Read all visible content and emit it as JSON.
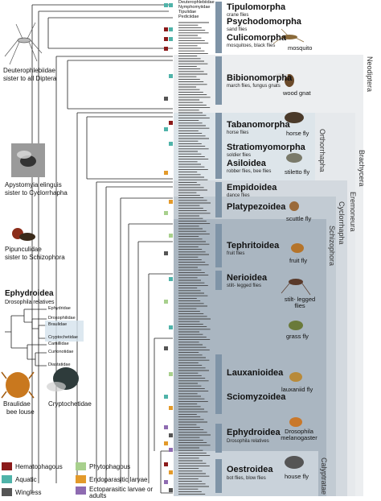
{
  "colors": {
    "hematophagous": "#8b1a1a",
    "aquatic": "#4fb3a9",
    "wingless": "#555555",
    "phytophagous": "#a8d08d",
    "endoparasitic": "#e39a2b",
    "ectoparasitic": "#8e6bb1",
    "band_light": "#e8eaed",
    "band_mid": "#b9c3cc",
    "band_dark": "#94a3b0",
    "clade_bar": "#7f94a7"
  },
  "groups": [
    {
      "name": "Tipulomorpha",
      "sub": "crane flies"
    },
    {
      "name": "Psychodomorpha",
      "sub": "sand flies"
    },
    {
      "name": "Culicomorpha",
      "sub": "mosquitoes, black flies"
    },
    {
      "name": "Bibionomorpha",
      "sub": "march flies, fungus gnats"
    },
    {
      "name": "Tabanomorpha",
      "sub": "horse flies"
    },
    {
      "name": "Stratiomyomorpha",
      "sub": "soldier flies"
    },
    {
      "name": "Asiloidea",
      "sub": "robber flies, bee flies"
    },
    {
      "name": "Empidoidea",
      "sub": "dance flies"
    },
    {
      "name": "Platypezoidea",
      "sub": ""
    },
    {
      "name": "Tephritoidea",
      "sub": "fruit flies"
    },
    {
      "name": "Nerioidea",
      "sub": "stilt- legged flies"
    },
    {
      "name": "Lauxanioidea",
      "sub": ""
    },
    {
      "name": "Sciomyzoidea",
      "sub": ""
    },
    {
      "name": "Ephydroidea",
      "sub": "Drosophila relatives"
    },
    {
      "name": "Oestroidea",
      "sub": "bot flies, blow flies"
    }
  ],
  "photo_captions": {
    "mosquito": "mosquito",
    "wood_gnat": "wood gnat",
    "horse_fly": "horse fly",
    "stiletto_fly": "stiletto fly",
    "scuttle_fly": "scuttle fly",
    "fruit_fly": "fruit fly",
    "stilt_legged": "stilt- legged flies",
    "grass_fly": "grass fly",
    "lauxaniid_fly": "lauxaniid fly",
    "drosophila": "Drosophila melanogaster",
    "house_fly": "house fly"
  },
  "side_notes": {
    "deuterophlebiidae_1": "Deuterophlebiidae",
    "deuterophlebiidae_2": "sister to all Diptera",
    "apystomyia_1": "Apystomyia elinguis",
    "apystomyia_2": "sister to Cyclorrhapha",
    "pipunculidae_1": "Pipunculidae",
    "pipunculidae_2": "sister to Schizophora",
    "braulidae_1": "Braulidae",
    "braulidae_2": "bee louse",
    "cryptochetidae": "Cryptochetidae"
  },
  "vertical_clades": [
    "Neodiptera",
    "Brachycera",
    "Orthorrhapha",
    "Eremoneura",
    "Cyclorrhapha",
    "Schizophora",
    "Calyptratae"
  ],
  "inset": {
    "title": "Ephydroidea",
    "subtitle": "Drosophila relatives",
    "taxa": [
      "Ephydridae",
      "Drosophilidae",
      "Braulidae",
      "Cryptochetidae",
      "Camillidae",
      "Curtonotidae",
      "Diastatidae"
    ]
  },
  "legend": [
    {
      "label": "Hematophagous",
      "color": "#8b1a1a"
    },
    {
      "label": "Phytophagous",
      "color": "#a8d08d"
    },
    {
      "label": "Aquatic",
      "color": "#4fb3a9"
    },
    {
      "label": "Endoparasitic larvae",
      "color": "#e39a2b"
    },
    {
      "label": "Wingless",
      "color": "#555555"
    },
    {
      "label": "Ectoparasitic larvae or adults",
      "color": "#8e6bb1"
    }
  ],
  "top_taxa": [
    "Deuterophlebiidae",
    "Nymphomyiidae",
    "Tipulidae",
    "Pediciidae",
    "Cylindrotomidae",
    "Limoniidae",
    "Trichoceridae"
  ]
}
